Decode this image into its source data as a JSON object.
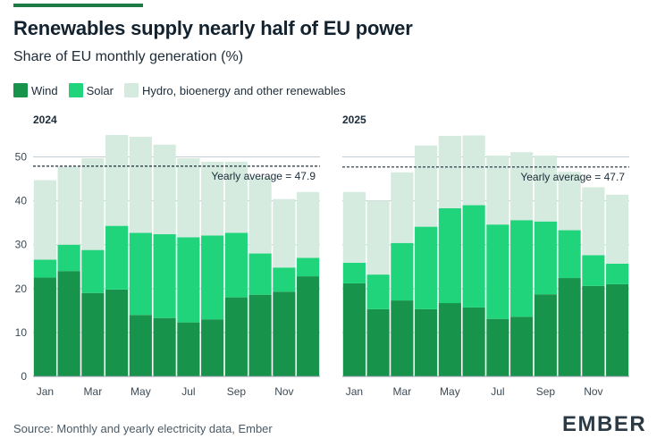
{
  "title": "Renewables supply nearly half of EU power",
  "subtitle": "Share of EU monthly generation (%)",
  "legend": [
    {
      "label": "Wind",
      "color": "#17934b"
    },
    {
      "label": "Solar",
      "color": "#1fd47a"
    },
    {
      "label": "Hydro, bioenergy and other renewables",
      "color": "#d5ebdf"
    }
  ],
  "source": "Source: Monthly and yearly electricity data, Ember",
  "logo": "EMBER",
  "chart_data": [
    {
      "type": "bar",
      "stacked": true,
      "title": "2024",
      "categories": [
        "Jan",
        "Feb",
        "Mar",
        "Apr",
        "May",
        "Jun",
        "Jul",
        "Aug",
        "Sep",
        "Oct",
        "Nov",
        "Dec"
      ],
      "x_tick_labels": [
        "Jan",
        "Mar",
        "May",
        "Jul",
        "Sep",
        "Nov"
      ],
      "series": [
        {
          "name": "Wind",
          "color": "#17934b",
          "values": [
            22.5,
            24.0,
            19.0,
            19.8,
            14.0,
            13.3,
            12.3,
            13.0,
            18.0,
            18.6,
            19.3,
            22.8
          ]
        },
        {
          "name": "Solar",
          "color": "#1fd47a",
          "values": [
            4.1,
            6.0,
            9.8,
            14.5,
            18.7,
            19.1,
            19.4,
            19.1,
            14.7,
            9.4,
            5.5,
            4.2
          ]
        },
        {
          "name": "Hydro, bioenergy and other renewables",
          "color": "#d5ebdf",
          "values": [
            18.1,
            17.8,
            20.9,
            20.7,
            21.9,
            20.4,
            18.0,
            16.8,
            16.2,
            17.3,
            15.6,
            15.0
          ]
        }
      ],
      "yearly_average": 47.9,
      "annotation": "Yearly average = 47.9",
      "ylim": [
        0,
        55
      ],
      "y_ticks": [
        0,
        10,
        20,
        30,
        40,
        50
      ],
      "grid": true
    },
    {
      "type": "bar",
      "stacked": true,
      "title": "2025",
      "categories": [
        "Jan",
        "Feb",
        "Mar",
        "Apr",
        "May",
        "Jun",
        "Jul",
        "Aug",
        "Sep",
        "Oct",
        "Nov",
        "Dec"
      ],
      "x_tick_labels": [
        "Jan",
        "Mar",
        "May",
        "Jul",
        "Sep",
        "Nov"
      ],
      "series": [
        {
          "name": "Wind",
          "color": "#17934b",
          "values": [
            21.2,
            15.3,
            17.3,
            15.3,
            16.7,
            15.7,
            13.1,
            13.6,
            18.7,
            22.4,
            20.6,
            21.0
          ]
        },
        {
          "name": "Solar",
          "color": "#1fd47a",
          "values": [
            4.7,
            7.9,
            13.1,
            18.8,
            21.6,
            23.3,
            21.5,
            22.0,
            16.6,
            10.9,
            7.0,
            4.7
          ]
        },
        {
          "name": "Hydro, bioenergy and other renewables",
          "color": "#d5ebdf",
          "values": [
            16.1,
            16.8,
            16.1,
            18.5,
            16.5,
            15.9,
            15.7,
            15.5,
            15.0,
            13.3,
            15.5,
            15.7
          ]
        }
      ],
      "yearly_average": 47.7,
      "annotation": "Yearly average = 47.7",
      "ylim": [
        0,
        55
      ],
      "y_ticks": [
        0,
        10,
        20,
        30,
        40,
        50
      ],
      "grid": true
    }
  ]
}
